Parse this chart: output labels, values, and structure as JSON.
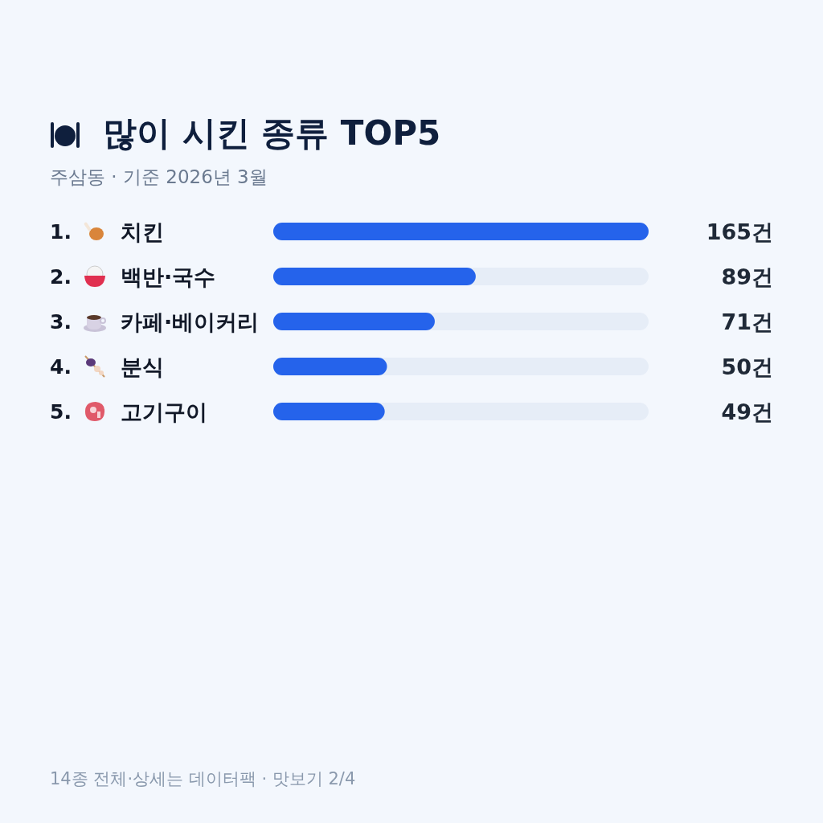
{
  "chart_data": {
    "type": "bar",
    "orientation": "horizontal",
    "title": "많이 시킨 종류 TOP5",
    "subtitle": "주삼동 · 기준 2026년 3월",
    "categories": [
      "1. 치킨",
      "2. 백반·국수",
      "3. 카페·베이커리",
      "4. 분식",
      "5. 고기구이"
    ],
    "values": [
      165,
      89,
      71,
      50,
      49
    ],
    "value_labels": [
      "165건",
      "89건",
      "71건",
      "50건",
      "49건"
    ],
    "color": "#2563eb",
    "xlim": [
      0,
      165
    ],
    "tick_labels": "y",
    "annotations": [
      "14종 전체·상세는 데이터팩 · 맛보기 2/4"
    ]
  }
}
